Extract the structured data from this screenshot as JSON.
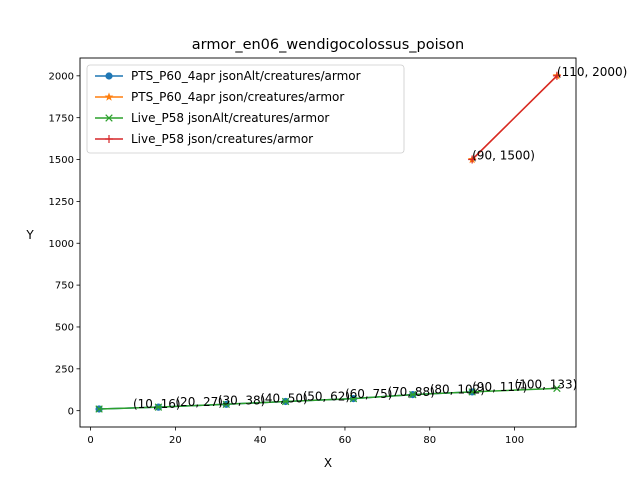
{
  "chart_data": {
    "type": "line",
    "title": "armor_en06_wendigocolossus_poison",
    "xlabel": "X",
    "ylabel": "Y",
    "xlim": [
      -2.5,
      114.5
    ],
    "ylim": [
      -97.5,
      2106.5
    ],
    "xticks": [
      0,
      20,
      40,
      60,
      80,
      100
    ],
    "yticks": [
      0,
      250,
      500,
      750,
      1000,
      1250,
      1500,
      1750,
      2000
    ],
    "grid": false,
    "legend_position": "top-left",
    "series": [
      {
        "name": "PTS_P60_4apr jsonAlt/creatures/armor",
        "color": "#1f77b4",
        "marker": "circle",
        "points": [
          [
            2,
            10
          ],
          [
            16,
            21
          ],
          [
            32,
            38
          ],
          [
            46,
            55
          ],
          [
            62,
            72
          ],
          [
            76,
            96
          ],
          [
            90,
            112
          ]
        ]
      },
      {
        "name": "PTS_P60_4apr json/creatures/armor",
        "color": "#ff7f0e",
        "marker": "star",
        "points": [
          [
            90,
            1500
          ],
          [
            110,
            2000
          ]
        ]
      },
      {
        "name": "Live_P58 jsonAlt/creatures/armor",
        "color": "#2ca02c",
        "marker": "x",
        "points": [
          [
            2,
            10
          ],
          [
            16,
            21
          ],
          [
            32,
            38
          ],
          [
            46,
            55
          ],
          [
            62,
            72
          ],
          [
            76,
            96
          ],
          [
            90,
            112
          ],
          [
            110,
            133
          ]
        ]
      },
      {
        "name": "Live_P58 json/creatures/armor",
        "color": "#d62728",
        "marker": "plus",
        "points": [
          [
            90,
            1500
          ],
          [
            110,
            2000
          ]
        ]
      }
    ],
    "annotations": [
      {
        "text": "(10, 16)",
        "x": 10,
        "y": 16
      },
      {
        "text": "(20, 27)",
        "x": 20,
        "y": 27
      },
      {
        "text": "(30, 38)",
        "x": 30,
        "y": 38
      },
      {
        "text": "(40, 50)",
        "x": 40,
        "y": 50
      },
      {
        "text": "(50, 62)",
        "x": 50,
        "y": 62
      },
      {
        "text": "(60, 75)",
        "x": 60,
        "y": 75
      },
      {
        "text": "(70, 88)",
        "x": 70,
        "y": 88
      },
      {
        "text": "(80, 102)",
        "x": 80,
        "y": 102
      },
      {
        "text": "(90, 117)",
        "x": 90,
        "y": 117
      },
      {
        "text": "(100, 133)",
        "x": 100,
        "y": 133
      },
      {
        "text": "(90, 1500)",
        "x": 90,
        "y": 1500
      },
      {
        "text": "(110, 2000)",
        "x": 110,
        "y": 2000
      }
    ]
  }
}
